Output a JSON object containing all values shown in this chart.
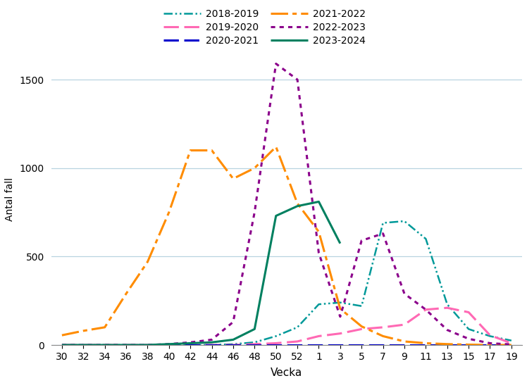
{
  "title": "",
  "xlabel": "Vecka",
  "ylabel": "Antal fall",
  "ylim": [
    0,
    1650
  ],
  "yticks": [
    0,
    500,
    1000,
    1500
  ],
  "x_labels": [
    "30",
    "32",
    "34",
    "36",
    "38",
    "40",
    "42",
    "44",
    "46",
    "48",
    "50",
    "52",
    "1",
    "3",
    "5",
    "7",
    "9",
    "11",
    "13",
    "15",
    "17",
    "19"
  ],
  "series": {
    "2018-2019": {
      "color": "#009999",
      "dash_style": "dashdotdot",
      "linewidth": 1.8,
      "x_idx": [
        0,
        1,
        2,
        3,
        4,
        5,
        6,
        7,
        8,
        9,
        10,
        11,
        12,
        13,
        14,
        15,
        16,
        17,
        18,
        19,
        20,
        21
      ],
      "y": [
        0,
        0,
        0,
        0,
        0,
        0,
        0,
        0,
        5,
        15,
        50,
        100,
        230,
        240,
        220,
        690,
        700,
        600,
        230,
        90,
        50,
        25
      ]
    },
    "2019-2020": {
      "color": "#FF69B4",
      "dash_style": "longdash",
      "linewidth": 2.2,
      "x_idx": [
        0,
        1,
        2,
        3,
        4,
        5,
        6,
        7,
        8,
        9,
        10,
        11,
        12,
        13,
        14,
        15,
        16,
        17,
        18,
        19,
        20,
        21
      ],
      "y": [
        0,
        0,
        0,
        0,
        0,
        0,
        0,
        0,
        0,
        5,
        10,
        20,
        50,
        65,
        90,
        100,
        115,
        200,
        210,
        185,
        55,
        10
      ]
    },
    "2020-2021": {
      "color": "#0000CD",
      "dash_style": "longdash",
      "linewidth": 2.2,
      "x_idx": [
        0,
        1,
        2,
        3,
        4,
        5,
        6,
        7,
        8,
        9,
        10,
        11,
        12,
        13,
        14,
        15,
        16,
        17,
        18,
        19,
        20,
        21
      ],
      "y": [
        0,
        0,
        0,
        0,
        0,
        0,
        0,
        0,
        0,
        0,
        0,
        0,
        0,
        0,
        0,
        0,
        0,
        0,
        0,
        0,
        0,
        0
      ]
    },
    "2021-2022": {
      "color": "#FF8C00",
      "dash_style": "dashdot",
      "linewidth": 2.2,
      "x_idx": [
        0,
        1,
        2,
        3,
        4,
        5,
        6,
        7,
        8,
        9,
        10,
        11,
        12,
        13,
        14,
        15,
        16,
        17,
        18,
        19,
        20,
        21
      ],
      "y": [
        55,
        80,
        100,
        290,
        470,
        750,
        1100,
        1100,
        940,
        1000,
        1120,
        800,
        640,
        205,
        105,
        50,
        20,
        10,
        5,
        2,
        0,
        0
      ]
    },
    "2022-2023": {
      "color": "#8B008B",
      "dash_style": "dotted",
      "linewidth": 2.2,
      "x_idx": [
        0,
        1,
        2,
        3,
        4,
        5,
        6,
        7,
        8,
        9,
        10,
        11,
        12,
        13,
        14,
        15,
        16,
        17,
        18,
        19,
        20,
        21
      ],
      "y": [
        0,
        0,
        0,
        0,
        0,
        5,
        15,
        30,
        130,
        750,
        1590,
        1500,
        520,
        160,
        590,
        630,
        290,
        200,
        85,
        35,
        10,
        3
      ]
    },
    "2023-2024": {
      "color": "#008060",
      "dash_style": "solid",
      "linewidth": 2.2,
      "x_idx": [
        0,
        1,
        2,
        3,
        4,
        5,
        6,
        7,
        8,
        9,
        10,
        11,
        12,
        13
      ],
      "y": [
        0,
        0,
        0,
        0,
        0,
        5,
        10,
        15,
        30,
        90,
        730,
        785,
        810,
        574
      ]
    }
  },
  "legend_col1": [
    "2018-2019",
    "2020-2021",
    "2022-2023"
  ],
  "legend_col2": [
    "2019-2020",
    "2021-2022",
    "2023-2024"
  ],
  "background_color": "#ffffff",
  "grid_color": "#b8d4e0",
  "grid_alpha": 1.0
}
